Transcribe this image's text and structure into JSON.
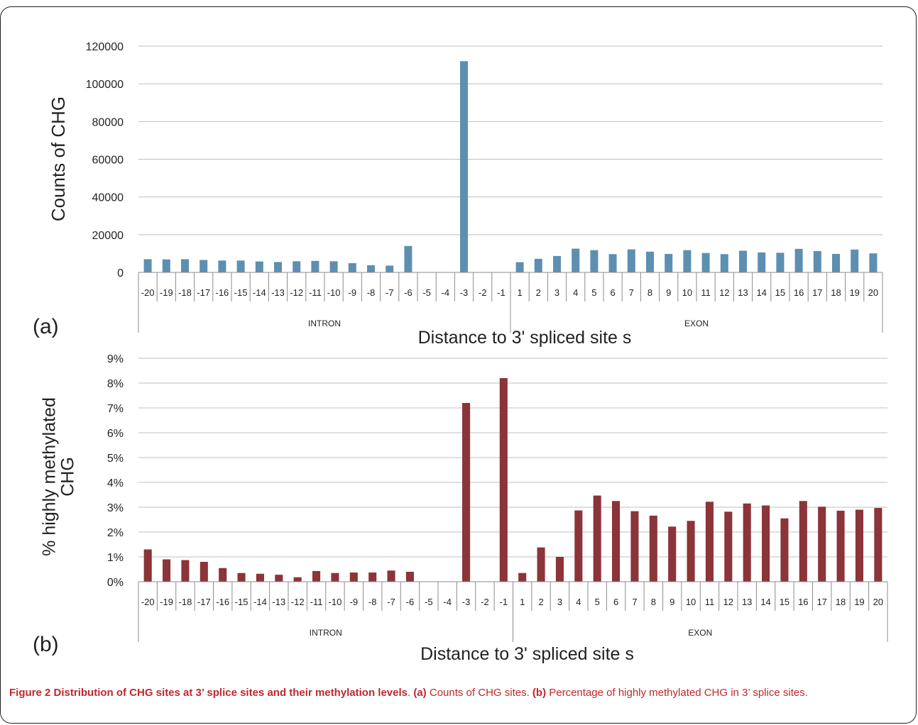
{
  "panels": [
    {
      "label": "(a)",
      "chart_data": {
        "type": "bar",
        "ylabel": "Counts of CHG",
        "xlabel": "Distance to 3' spliced site    s",
        "ylim": [
          0,
          120000
        ],
        "yticks": [
          "0",
          "20000",
          "40000",
          "60000",
          "80000",
          "100000",
          "120000"
        ],
        "ytick_values": [
          0,
          20000,
          40000,
          60000,
          80000,
          100000,
          120000
        ],
        "categories": [
          "-20",
          "-19",
          "-18",
          "-17",
          "-16",
          "-15",
          "-14",
          "-13",
          "-12",
          "-11",
          "-10",
          "-9",
          "-8",
          "-7",
          "-6",
          "-5",
          "-4",
          "-3",
          "-2",
          "-1",
          "1",
          "2",
          "3",
          "4",
          "5",
          "6",
          "7",
          "8",
          "9",
          "10",
          "11",
          "12",
          "13",
          "14",
          "15",
          "16",
          "17",
          "18",
          "19",
          "20"
        ],
        "groups": [
          {
            "name": "INTRON",
            "count": 20
          },
          {
            "name": "EXON",
            "count": 20
          }
        ],
        "values": [
          7000,
          6900,
          7000,
          6600,
          6300,
          6300,
          5800,
          5500,
          5900,
          6100,
          5900,
          4900,
          3800,
          3600,
          14000,
          0,
          0,
          112000,
          0,
          0,
          5400,
          7200,
          8700,
          12600,
          11800,
          9700,
          12200,
          11000,
          9800,
          11800,
          10300,
          9700,
          11500,
          10600,
          10400,
          12500,
          11300,
          9800,
          12100,
          10100
        ],
        "grid": true,
        "color": "#5d8fb0"
      }
    },
    {
      "label": "(b)",
      "chart_data": {
        "type": "bar",
        "ylabel": "% highly methylated CHG",
        "ylabel_lines": [
          "% highly methylated",
          "CHG"
        ],
        "xlabel": "Distance to 3' spliced site    s",
        "ylim": [
          0,
          9
        ],
        "yticks": [
          "0%",
          "1%",
          "2%",
          "3%",
          "4%",
          "5%",
          "6%",
          "7%",
          "8%",
          "9%"
        ],
        "ytick_values": [
          0,
          1,
          2,
          3,
          4,
          5,
          6,
          7,
          8,
          9
        ],
        "categories": [
          "-20",
          "-19",
          "-18",
          "-17",
          "-16",
          "-15",
          "-14",
          "-13",
          "-12",
          "-11",
          "-10",
          "-9",
          "-8",
          "-7",
          "-6",
          "-5",
          "-4",
          "-3",
          "-2",
          "-1",
          "1",
          "2",
          "3",
          "4",
          "5",
          "6",
          "7",
          "8",
          "9",
          "10",
          "11",
          "12",
          "13",
          "14",
          "15",
          "16",
          "17",
          "18",
          "19",
          "20"
        ],
        "groups": [
          {
            "name": "INTRON",
            "count": 20
          },
          {
            "name": "EXON",
            "count": 20
          }
        ],
        "values": [
          1.3,
          0.9,
          0.87,
          0.8,
          0.55,
          0.35,
          0.32,
          0.28,
          0.18,
          0.43,
          0.35,
          0.37,
          0.37,
          0.45,
          0.4,
          0,
          0,
          7.2,
          0,
          8.2,
          0.35,
          1.38,
          1.0,
          2.87,
          3.47,
          3.25,
          2.84,
          2.66,
          2.22,
          2.45,
          3.22,
          2.82,
          3.15,
          3.07,
          2.55,
          3.25,
          3.02,
          2.86,
          2.9,
          2.97
        ],
        "grid": true,
        "color": "#8b3439"
      }
    }
  ],
  "caption": {
    "figure_label": "Figure 2",
    "title": "Distribution of CHG sites at 3’ splice sites and their methylation levels",
    "part_a_label": "(a)",
    "part_a_text": "Counts of CHG sites.",
    "part_b_label": "(b)",
    "part_b_text": "Percentage of highly methylated CHG in 3’ splice sites."
  }
}
